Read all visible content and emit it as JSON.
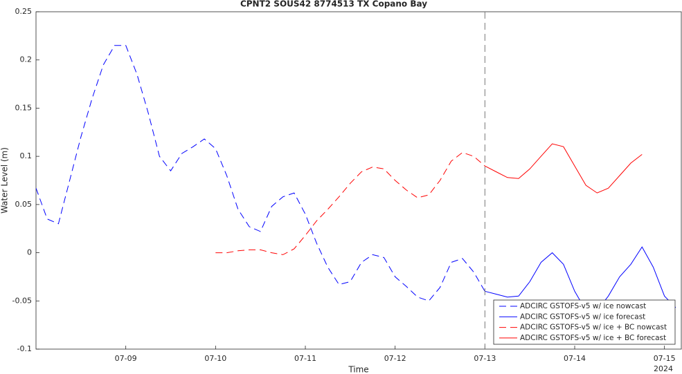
{
  "chart_data": {
    "type": "line",
    "title": "CPNT2 SOUS42 8774513 TX Copano Bay",
    "xlabel": "Time",
    "ylabel": "Water Level (m)",
    "x_year_label": "2024",
    "xlim": [
      "2024-07-08T00:00",
      "2024-07-15T04:30"
    ],
    "xticks": [
      {
        "value": "2024-07-09T00:00",
        "label": "07-09"
      },
      {
        "value": "2024-07-10T00:00",
        "label": "07-10"
      },
      {
        "value": "2024-07-11T00:00",
        "label": "07-11"
      },
      {
        "value": "2024-07-12T00:00",
        "label": "07-12"
      },
      {
        "value": "2024-07-13T00:00",
        "label": "07-13"
      },
      {
        "value": "2024-07-14T00:00",
        "label": "07-14"
      },
      {
        "value": "2024-07-15T00:00",
        "label": "07-15"
      }
    ],
    "ylim": [
      -0.1,
      0.25
    ],
    "yticks": [
      -0.1,
      -0.05,
      0,
      0.05,
      0.1,
      0.15,
      0.2,
      0.25
    ],
    "vline": "2024-07-13T00:00",
    "legend": "lower right",
    "series": [
      {
        "name": "ADCIRC GSTOFS-v5 w/ ice nowcast",
        "color": "#0000ff",
        "dashed": true,
        "x": [
          "2024-07-08T00:00",
          "2024-07-08T03:00",
          "2024-07-08T06:00",
          "2024-07-08T09:00",
          "2024-07-08T12:00",
          "2024-07-08T15:00",
          "2024-07-08T18:00",
          "2024-07-08T21:00",
          "2024-07-09T00:00",
          "2024-07-09T03:00",
          "2024-07-09T06:00",
          "2024-07-09T09:00",
          "2024-07-09T12:00",
          "2024-07-09T15:00",
          "2024-07-09T18:00",
          "2024-07-09T21:00",
          "2024-07-10T00:00",
          "2024-07-10T03:00",
          "2024-07-10T06:00",
          "2024-07-10T09:00",
          "2024-07-10T12:00",
          "2024-07-10T15:00",
          "2024-07-10T18:00",
          "2024-07-10T21:00",
          "2024-07-11T00:00",
          "2024-07-11T03:00",
          "2024-07-11T06:00",
          "2024-07-11T09:00",
          "2024-07-11T12:00",
          "2024-07-11T15:00",
          "2024-07-11T18:00",
          "2024-07-11T21:00",
          "2024-07-12T00:00",
          "2024-07-12T03:00",
          "2024-07-12T06:00",
          "2024-07-12T09:00",
          "2024-07-12T12:00",
          "2024-07-12T15:00",
          "2024-07-12T18:00",
          "2024-07-12T21:00",
          "2024-07-13T00:00"
        ],
        "values": [
          0.067,
          0.035,
          0.03,
          0.075,
          0.12,
          0.16,
          0.195,
          0.215,
          0.215,
          0.185,
          0.145,
          0.1,
          0.085,
          0.103,
          0.11,
          0.118,
          0.108,
          0.08,
          0.045,
          0.027,
          0.022,
          0.048,
          0.058,
          0.062,
          0.04,
          0.01,
          -0.015,
          -0.033,
          -0.03,
          -0.01,
          -0.002,
          -0.005,
          -0.025,
          -0.035,
          -0.046,
          -0.05,
          -0.036,
          -0.01,
          -0.006,
          -0.02,
          -0.04
        ]
      },
      {
        "name": "ADCIRC GSTOFS-v5 w/ ice forecast",
        "color": "#0000ff",
        "dashed": false,
        "x": [
          "2024-07-13T00:00",
          "2024-07-13T03:00",
          "2024-07-13T06:00",
          "2024-07-13T09:00",
          "2024-07-13T12:00",
          "2024-07-13T15:00",
          "2024-07-13T18:00",
          "2024-07-13T21:00",
          "2024-07-14T00:00",
          "2024-07-14T03:00",
          "2024-07-14T06:00",
          "2024-07-14T09:00",
          "2024-07-14T12:00",
          "2024-07-14T15:00",
          "2024-07-14T18:00",
          "2024-07-14T21:00",
          "2024-07-15T00:00",
          "2024-07-15T03:00"
        ],
        "values": [
          -0.04,
          -0.043,
          -0.046,
          -0.045,
          -0.03,
          -0.01,
          0.0,
          -0.012,
          -0.04,
          -0.06,
          -0.06,
          -0.045,
          -0.025,
          -0.012,
          0.006,
          -0.015,
          -0.045,
          -0.057
        ]
      },
      {
        "name": "ADCIRC GSTOFS-v5 w/ ice + BC nowcast",
        "color": "#ff0000",
        "dashed": true,
        "x": [
          "2024-07-10T00:00",
          "2024-07-10T03:00",
          "2024-07-10T06:00",
          "2024-07-10T09:00",
          "2024-07-10T12:00",
          "2024-07-10T15:00",
          "2024-07-10T18:00",
          "2024-07-10T21:00",
          "2024-07-11T00:00",
          "2024-07-11T03:00",
          "2024-07-11T06:00",
          "2024-07-11T09:00",
          "2024-07-11T12:00",
          "2024-07-11T15:00",
          "2024-07-11T18:00",
          "2024-07-11T21:00",
          "2024-07-12T00:00",
          "2024-07-12T03:00",
          "2024-07-12T06:00",
          "2024-07-12T09:00",
          "2024-07-12T12:00",
          "2024-07-12T15:00",
          "2024-07-12T18:00",
          "2024-07-12T21:00",
          "2024-07-13T00:00"
        ],
        "values": [
          0.0,
          0.0,
          0.002,
          0.003,
          0.003,
          0.0,
          -0.002,
          0.004,
          0.018,
          0.033,
          0.045,
          0.058,
          0.072,
          0.084,
          0.089,
          0.087,
          0.075,
          0.065,
          0.057,
          0.06,
          0.075,
          0.095,
          0.104,
          0.1,
          0.09
        ]
      },
      {
        "name": "ADCIRC GSTOFS-v5 w/ ice + BC forecast",
        "color": "#ff0000",
        "dashed": false,
        "x": [
          "2024-07-13T00:00",
          "2024-07-13T03:00",
          "2024-07-13T06:00",
          "2024-07-13T09:00",
          "2024-07-13T12:00",
          "2024-07-13T15:00",
          "2024-07-13T18:00",
          "2024-07-13T21:00",
          "2024-07-14T00:00",
          "2024-07-14T03:00",
          "2024-07-14T06:00",
          "2024-07-14T09:00",
          "2024-07-14T12:00",
          "2024-07-14T15:00",
          "2024-07-14T18:00"
        ],
        "values": [
          0.09,
          0.084,
          0.078,
          0.077,
          0.087,
          0.1,
          0.113,
          0.11,
          0.09,
          0.07,
          0.062,
          0.067,
          0.08,
          0.093,
          0.102
        ]
      }
    ]
  }
}
